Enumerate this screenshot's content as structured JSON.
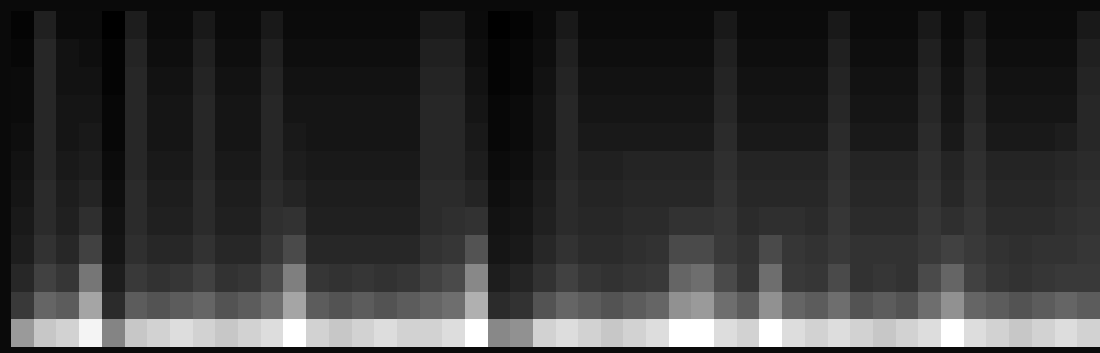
{
  "chart_data": {
    "type": "heatmap",
    "tick_labels": false,
    "cells": [
      [
        60,
        68,
        70,
        76,
        55,
        68,
        70,
        72,
        70,
        68,
        70,
        72,
        78,
        70,
        68,
        70,
        72,
        70,
        70,
        72,
        78,
        56,
        58,
        70,
        72,
        70,
        68,
        70,
        72,
        78,
        78,
        72,
        70,
        78,
        72,
        70,
        72,
        70,
        68,
        70,
        72,
        78,
        72,
        70,
        68,
        70,
        72,
        70
      ],
      [
        38,
        48,
        46,
        62,
        30,
        46,
        44,
        46,
        48,
        44,
        46,
        50,
        62,
        46,
        44,
        46,
        44,
        46,
        48,
        50,
        64,
        30,
        34,
        44,
        48,
        46,
        44,
        46,
        48,
        58,
        60,
        50,
        46,
        58,
        48,
        46,
        50,
        44,
        46,
        44,
        50,
        58,
        48,
        46,
        44,
        46,
        48,
        46
      ],
      [
        28,
        40,
        36,
        52,
        22,
        38,
        34,
        36,
        40,
        34,
        36,
        42,
        54,
        36,
        34,
        36,
        34,
        36,
        40,
        42,
        56,
        22,
        26,
        34,
        40,
        36,
        34,
        36,
        38,
        48,
        50,
        42,
        36,
        50,
        38,
        36,
        42,
        34,
        36,
        34,
        42,
        48,
        40,
        36,
        34,
        36,
        38,
        38
      ],
      [
        22,
        34,
        28,
        40,
        18,
        32,
        28,
        28,
        34,
        28,
        28,
        36,
        42,
        28,
        28,
        28,
        28,
        28,
        34,
        36,
        44,
        18,
        20,
        28,
        34,
        30,
        30,
        32,
        34,
        42,
        42,
        38,
        34,
        42,
        36,
        34,
        38,
        34,
        34,
        34,
        38,
        40,
        38,
        34,
        32,
        34,
        34,
        36
      ],
      [
        20,
        30,
        24,
        32,
        16,
        30,
        24,
        24,
        30,
        24,
        24,
        32,
        34,
        24,
        24,
        24,
        24,
        24,
        30,
        32,
        34,
        16,
        18,
        24,
        30,
        28,
        28,
        30,
        30,
        34,
        34,
        36,
        30,
        32,
        32,
        30,
        36,
        30,
        30,
        30,
        36,
        32,
        36,
        30,
        30,
        30,
        32,
        34
      ],
      [
        18,
        30,
        22,
        26,
        14,
        30,
        22,
        22,
        30,
        22,
        22,
        30,
        26,
        22,
        22,
        22,
        22,
        22,
        30,
        30,
        26,
        14,
        16,
        22,
        30,
        26,
        26,
        28,
        28,
        28,
        28,
        34,
        28,
        28,
        28,
        28,
        34,
        28,
        28,
        28,
        34,
        28,
        34,
        28,
        28,
        28,
        30,
        32
      ],
      [
        16,
        28,
        20,
        22,
        12,
        28,
        20,
        20,
        28,
        20,
        20,
        28,
        22,
        20,
        20,
        20,
        20,
        20,
        28,
        28,
        22,
        12,
        14,
        20,
        28,
        24,
        24,
        26,
        26,
        26,
        26,
        32,
        26,
        26,
        26,
        26,
        32,
        26,
        26,
        26,
        32,
        26,
        32,
        26,
        26,
        26,
        28,
        30
      ],
      [
        14,
        28,
        18,
        20,
        10,
        28,
        18,
        18,
        28,
        18,
        18,
        28,
        20,
        18,
        18,
        18,
        18,
        18,
        28,
        28,
        20,
        10,
        12,
        18,
        28,
        20,
        20,
        20,
        20,
        20,
        20,
        30,
        20,
        20,
        20,
        20,
        30,
        20,
        20,
        20,
        30,
        20,
        30,
        20,
        20,
        20,
        22,
        28
      ],
      [
        12,
        28,
        18,
        18,
        10,
        28,
        18,
        18,
        28,
        18,
        18,
        28,
        18,
        18,
        18,
        18,
        18,
        18,
        28,
        28,
        18,
        10,
        12,
        18,
        28,
        18,
        18,
        18,
        18,
        18,
        18,
        28,
        18,
        18,
        18,
        18,
        28,
        18,
        18,
        18,
        28,
        18,
        28,
        18,
        18,
        18,
        18,
        28
      ],
      [
        12,
        28,
        16,
        16,
        8,
        28,
        16,
        16,
        26,
        16,
        16,
        26,
        16,
        16,
        16,
        16,
        16,
        16,
        26,
        26,
        16,
        8,
        10,
        16,
        26,
        16,
        16,
        16,
        16,
        16,
        16,
        26,
        16,
        16,
        16,
        16,
        26,
        16,
        16,
        16,
        26,
        16,
        26,
        16,
        16,
        16,
        16,
        26
      ],
      [
        10,
        28,
        16,
        14,
        8,
        26,
        14,
        14,
        24,
        14,
        14,
        24,
        14,
        14,
        14,
        14,
        14,
        14,
        24,
        24,
        14,
        8,
        10,
        14,
        24,
        14,
        14,
        14,
        14,
        14,
        14,
        24,
        14,
        14,
        14,
        14,
        24,
        14,
        14,
        14,
        24,
        14,
        24,
        14,
        14,
        14,
        14,
        24
      ],
      [
        8,
        24,
        12,
        12,
        6,
        22,
        12,
        12,
        20,
        12,
        12,
        20,
        12,
        12,
        12,
        12,
        12,
        12,
        20,
        20,
        12,
        6,
        8,
        12,
        20,
        12,
        12,
        12,
        12,
        12,
        12,
        20,
        12,
        12,
        12,
        12,
        20,
        12,
        12,
        12,
        20,
        12,
        20,
        12,
        12,
        12,
        12,
        20
      ]
    ]
  }
}
